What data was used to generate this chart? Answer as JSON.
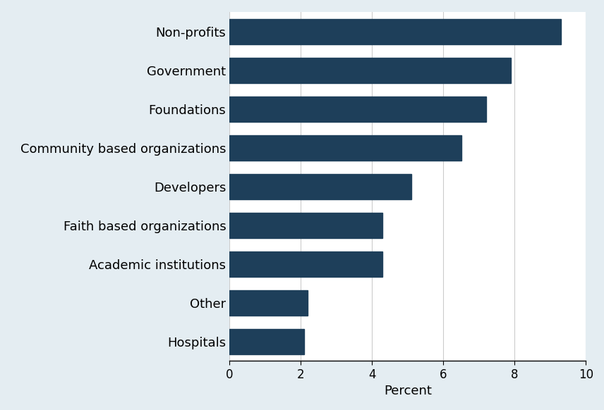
{
  "categories": [
    "Hospitals",
    "Other",
    "Academic institutions",
    "Faith based organizations",
    "Developers",
    "Community based organizations",
    "Foundations",
    "Government",
    "Non-profits"
  ],
  "values": [
    2.1,
    2.2,
    4.3,
    4.3,
    5.1,
    6.5,
    7.2,
    7.9,
    9.3
  ],
  "bar_color": "#1e3f5a",
  "background_color": "#e4edf2",
  "plot_background_color": "#ffffff",
  "xlabel": "Percent",
  "xlim": [
    0,
    10
  ],
  "xticks": [
    0,
    2,
    4,
    6,
    8,
    10
  ],
  "bar_height": 0.65,
  "label_fontsize": 13,
  "tick_fontsize": 12,
  "xlabel_fontsize": 13
}
